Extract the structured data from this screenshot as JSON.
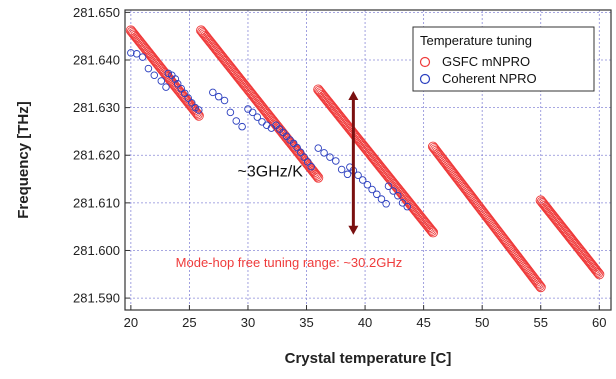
{
  "chart_data": {
    "type": "scatter",
    "xlabel": "Crystal temperature [C]",
    "ylabel": "Frequency [THz]",
    "xlim": [
      19.5,
      61.0
    ],
    "ylim": [
      281.5875,
      281.6505
    ],
    "x_ticks": [
      20,
      25,
      30,
      35,
      40,
      45,
      50,
      55,
      60
    ],
    "x_tick_labels": [
      "20",
      "25",
      "30",
      "35",
      "40",
      "45",
      "50",
      "55",
      "60"
    ],
    "y_ticks": [
      281.59,
      281.6,
      281.61,
      281.62,
      281.63,
      281.64,
      281.65
    ],
    "y_tick_labels": [
      "281.590",
      "281.600",
      "281.610",
      "281.620",
      "281.630",
      "281.640",
      "281.650"
    ],
    "grid": true,
    "legend": {
      "title": "Temperature tuning",
      "placement": "top-right",
      "entries": [
        {
          "label": "GSFC mNPRO",
          "color": "#ef3b3b"
        },
        {
          "label": "Coherent NPRO",
          "color": "#2b3fbf"
        }
      ]
    },
    "series": [
      {
        "name": "GSFC mNPRO",
        "color": "#ef3b3b",
        "marker": "open-circle",
        "segments": [
          {
            "x_start": 20.0,
            "x_end": 25.8,
            "y_start": 281.6462,
            "y_end": 281.6283
          },
          {
            "x_start": 26.0,
            "x_end": 36.0,
            "y_start": 281.6462,
            "y_end": 281.6153
          },
          {
            "x_start": 36.0,
            "x_end": 45.8,
            "y_start": 281.6338,
            "y_end": 281.6038
          },
          {
            "x_start": 45.8,
            "x_end": 55.0,
            "y_start": 281.6218,
            "y_end": 281.5923
          },
          {
            "x_start": 55.0,
            "x_end": 60.0,
            "y_start": 281.6105,
            "y_end": 281.595
          }
        ]
      },
      {
        "name": "Coherent NPRO",
        "color": "#2b3fbf",
        "marker": "open-circle",
        "points": [
          [
            20.0,
            281.6415
          ],
          [
            20.5,
            281.6413
          ],
          [
            21.0,
            281.6406
          ],
          [
            21.5,
            281.6382
          ],
          [
            22.0,
            281.6368
          ],
          [
            22.6,
            281.6356
          ],
          [
            23.0,
            281.6343
          ],
          [
            23.2,
            281.6372
          ],
          [
            23.5,
            281.6368
          ],
          [
            23.8,
            281.636
          ],
          [
            24.0,
            281.635
          ],
          [
            24.3,
            281.634
          ],
          [
            24.6,
            281.633
          ],
          [
            24.9,
            281.632
          ],
          [
            25.2,
            281.631
          ],
          [
            25.5,
            281.63
          ],
          [
            25.8,
            281.6295
          ],
          [
            27.0,
            281.6332
          ],
          [
            27.5,
            281.6323
          ],
          [
            28.0,
            281.6315
          ],
          [
            28.5,
            281.629
          ],
          [
            29.0,
            281.6272
          ],
          [
            29.5,
            281.626
          ],
          [
            30.0,
            281.6297
          ],
          [
            30.4,
            281.629
          ],
          [
            30.8,
            281.628
          ],
          [
            31.2,
            281.627
          ],
          [
            31.6,
            281.6263
          ],
          [
            32.0,
            281.6257
          ],
          [
            32.4,
            281.6263
          ],
          [
            32.7,
            281.6255
          ],
          [
            33.0,
            281.6248
          ],
          [
            33.3,
            281.624
          ],
          [
            33.6,
            281.6232
          ],
          [
            33.9,
            281.6225
          ],
          [
            34.2,
            281.6216
          ],
          [
            34.5,
            281.6206
          ],
          [
            34.8,
            281.6196
          ],
          [
            35.1,
            281.6186
          ],
          [
            35.4,
            281.6176
          ],
          [
            36.0,
            281.6215
          ],
          [
            36.5,
            281.6205
          ],
          [
            37.0,
            281.6196
          ],
          [
            37.5,
            281.6188
          ],
          [
            38.0,
            281.617
          ],
          [
            38.5,
            281.616
          ],
          [
            38.7,
            281.6175
          ],
          [
            39.0,
            281.6168
          ],
          [
            39.4,
            281.6158
          ],
          [
            39.8,
            281.6148
          ],
          [
            40.2,
            281.6138
          ],
          [
            40.6,
            281.6128
          ],
          [
            41.0,
            281.6118
          ],
          [
            41.4,
            281.6108
          ],
          [
            41.8,
            281.6098
          ],
          [
            42.0,
            281.6135
          ],
          [
            42.4,
            281.6125
          ],
          [
            42.8,
            281.6115
          ],
          [
            43.2,
            281.61
          ],
          [
            43.6,
            281.6092
          ]
        ]
      }
    ],
    "annotations": [
      {
        "text": "~3GHz/K",
        "x": 31.9,
        "y": 281.6155,
        "color": "#111111"
      },
      {
        "text": "Mode-hop free tuning range: ~30.2GHz",
        "x": 33.5,
        "y": 281.5965,
        "color": "#ef3b3b"
      }
    ],
    "arrow": {
      "x": 39.0,
      "y_from": 281.6033,
      "y_to": 281.6335,
      "color": "#7a1010",
      "double_headed": true
    }
  }
}
